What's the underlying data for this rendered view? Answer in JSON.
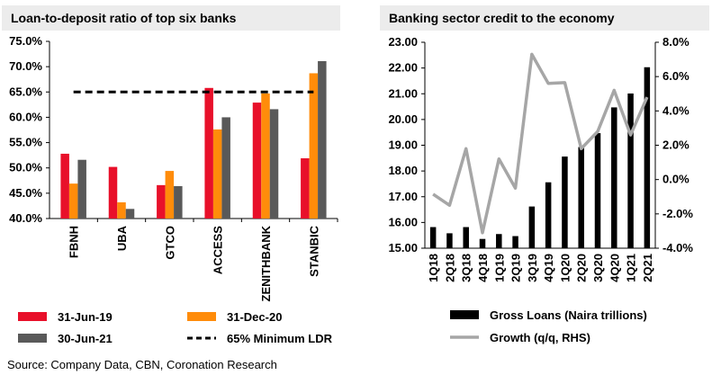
{
  "source": "Source: Company Data, CBN, Coronation Research",
  "colors": {
    "series1": "#e8102a",
    "series2": "#ff8c0a",
    "series3": "#595959",
    "ldr": "#000000",
    "gross_loans": "#000000",
    "growth": "#a6a6a6",
    "title_bg": "#ececec"
  },
  "chart_data": [
    {
      "type": "bar",
      "title": "Loan-to-deposit ratio of top six banks",
      "categories": [
        "FBNH",
        "UBA",
        "GTCO",
        "ACCESS",
        "ZENITHBANK",
        "STANBIC"
      ],
      "series": [
        {
          "name": "31-Jun-19",
          "values": [
            52.8,
            50.2,
            46.6,
            65.8,
            62.9,
            51.9
          ]
        },
        {
          "name": "31-Dec-20",
          "values": [
            46.9,
            43.2,
            49.4,
            57.6,
            64.7,
            68.7
          ]
        },
        {
          "name": "30-Jun-21",
          "values": [
            51.6,
            41.9,
            46.4,
            60.0,
            61.6,
            71.1
          ]
        }
      ],
      "reference_line": {
        "name": "65% Minimum LDR",
        "value": 65.0
      },
      "ylim": [
        40,
        75
      ],
      "yticks": [
        "40.0%",
        "45.0%",
        "50.0%",
        "55.0%",
        "60.0%",
        "65.0%",
        "70.0%",
        "75.0%"
      ],
      "legend_position": "bottom"
    },
    {
      "type": "bar+line",
      "title": "Banking sector credit to the economy",
      "categories": [
        "1Q18",
        "2Q18",
        "3Q18",
        "4Q18",
        "1Q19",
        "2Q19",
        "3Q19",
        "4Q19",
        "1Q20",
        "2Q20",
        "3Q20",
        "4Q20",
        "1Q21",
        "2Q21"
      ],
      "series": [
        {
          "name": "Gross Loans (Naira trillions)",
          "axis": "left",
          "type": "bar",
          "values": [
            15.82,
            15.58,
            15.82,
            15.36,
            15.55,
            15.47,
            16.62,
            17.56,
            18.56,
            18.93,
            19.47,
            20.47,
            21.01,
            22.03
          ]
        },
        {
          "name": "Growth (q/q, RHS)",
          "axis": "right",
          "type": "line",
          "values": [
            -0.85,
            -1.5,
            1.8,
            -3.1,
            1.2,
            -0.5,
            7.3,
            5.6,
            5.65,
            1.8,
            2.8,
            5.2,
            2.6,
            4.8
          ]
        }
      ],
      "ylim_left": [
        15,
        23
      ],
      "yticks_left": [
        "15.00",
        "16.00",
        "17.00",
        "18.00",
        "19.00",
        "20.00",
        "21.00",
        "22.00",
        "23.00"
      ],
      "ylim_right": [
        -4,
        8
      ],
      "yticks_right": [
        "-4.0%",
        "-2.0%",
        "0.0%",
        "2.0%",
        "4.0%",
        "6.0%",
        "8.0%"
      ],
      "legend_position": "bottom"
    }
  ]
}
